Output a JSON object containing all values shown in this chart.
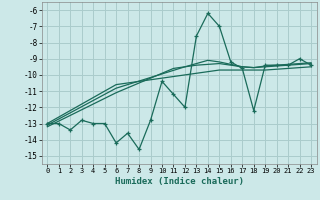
{
  "xlabel": "Humidex (Indice chaleur)",
  "bg_color": "#cce8e8",
  "grid_color": "#aacccc",
  "line_color": "#1a6b5a",
  "x": [
    0,
    1,
    2,
    3,
    4,
    5,
    6,
    7,
    8,
    9,
    10,
    11,
    12,
    13,
    14,
    15,
    16,
    17,
    18,
    19,
    20,
    21,
    22,
    23
  ],
  "y_main": [
    -13.0,
    -13.0,
    -13.4,
    -12.8,
    -13.0,
    -13.0,
    -14.2,
    -13.6,
    -14.6,
    -12.8,
    -10.4,
    -11.2,
    -12.0,
    -7.6,
    -6.2,
    -7.0,
    -9.2,
    -9.6,
    -12.2,
    -9.4,
    -9.4,
    -9.4,
    -9.0,
    -9.4
  ],
  "y_trend1": [
    -13.0,
    -12.6,
    -12.2,
    -11.8,
    -11.4,
    -11.0,
    -10.6,
    -10.5,
    -10.4,
    -10.3,
    -10.2,
    -10.1,
    -10.0,
    -9.9,
    -9.8,
    -9.7,
    -9.7,
    -9.7,
    -9.7,
    -9.7,
    -9.65,
    -9.6,
    -9.55,
    -9.5
  ],
  "y_trend2": [
    -13.2,
    -12.85,
    -12.5,
    -12.15,
    -11.8,
    -11.45,
    -11.1,
    -10.8,
    -10.5,
    -10.2,
    -9.9,
    -9.6,
    -9.5,
    -9.4,
    -9.35,
    -9.3,
    -9.4,
    -9.5,
    -9.55,
    -9.5,
    -9.45,
    -9.4,
    -9.35,
    -9.3
  ],
  "y_trend3": [
    -13.1,
    -12.72,
    -12.34,
    -11.96,
    -11.58,
    -11.2,
    -10.82,
    -10.6,
    -10.38,
    -10.16,
    -9.94,
    -9.72,
    -9.5,
    -9.3,
    -9.1,
    -9.2,
    -9.35,
    -9.5,
    -9.55,
    -9.45,
    -9.4,
    -9.35,
    -9.3,
    -9.25
  ],
  "ylim": [
    -15.5,
    -5.5
  ],
  "xlim": [
    -0.5,
    23.5
  ],
  "yticks": [
    -15,
    -14,
    -13,
    -12,
    -11,
    -10,
    -9,
    -8,
    -7,
    -6
  ],
  "xticks": [
    0,
    1,
    2,
    3,
    4,
    5,
    6,
    7,
    8,
    9,
    10,
    11,
    12,
    13,
    14,
    15,
    16,
    17,
    18,
    19,
    20,
    21,
    22,
    23
  ]
}
